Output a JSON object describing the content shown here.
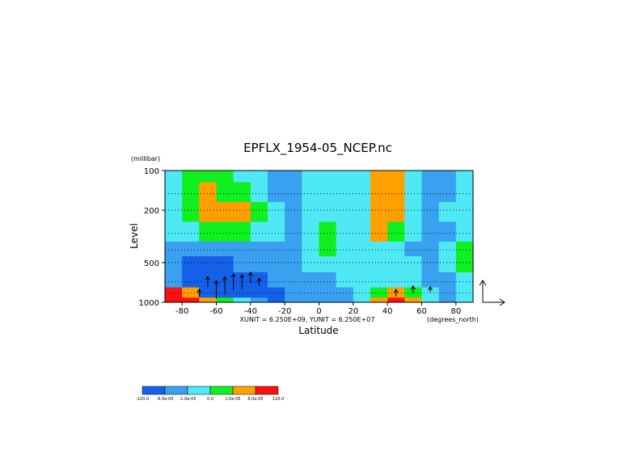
{
  "chart_data": {
    "type": "heatmap",
    "title": "EPFLX_1954-05_NCEP.nc",
    "xlabel": "Latitude",
    "x_units": "(degrees_north)",
    "ylabel": "Level",
    "y_units": "(millibar)",
    "xlim": [
      -90,
      90
    ],
    "ylim": [
      1000,
      100
    ],
    "y_scale": "log",
    "x_ticks": [
      -80,
      -60,
      -40,
      -20,
      0,
      20,
      40,
      60,
      80
    ],
    "y_ticks": [
      100,
      200,
      500,
      1000
    ],
    "unit_label": "XUNIT = 6.250E+09, YUNIT = 6.250E+07",
    "levels": {
      "colors": [
        "#1560e8",
        "#3aa0f0",
        "#4fe8f5",
        "#10f020",
        "#ffa000",
        "#ff1010"
      ],
      "labels": [
        "-120.0",
        "-6.0e-05",
        "-1.0e-05",
        "0.0",
        "1.0e-05",
        "6.0e-05",
        "120.0"
      ]
    },
    "x": [
      -85,
      -75,
      -65,
      -55,
      -45,
      -35,
      -25,
      -15,
      -5,
      5,
      15,
      25,
      35,
      45,
      55,
      65,
      75,
      85
    ],
    "y": [
      100,
      150,
      200,
      300,
      400,
      500,
      700,
      850,
      1000
    ],
    "z_class": [
      [
        2,
        3,
        3,
        3,
        2,
        2,
        1,
        1,
        2,
        2,
        2,
        2,
        4,
        4,
        2,
        1,
        1,
        2
      ],
      [
        2,
        3,
        4,
        3,
        3,
        2,
        1,
        1,
        2,
        2,
        2,
        2,
        4,
        4,
        2,
        1,
        1,
        2
      ],
      [
        2,
        3,
        4,
        4,
        4,
        3,
        2,
        1,
        2,
        2,
        2,
        2,
        4,
        4,
        2,
        1,
        2,
        2
      ],
      [
        2,
        2,
        3,
        3,
        3,
        2,
        2,
        1,
        2,
        3,
        2,
        2,
        4,
        3,
        2,
        1,
        1,
        2
      ],
      [
        1,
        1,
        1,
        1,
        1,
        1,
        1,
        1,
        2,
        3,
        2,
        2,
        2,
        2,
        1,
        1,
        2,
        3
      ],
      [
        1,
        0,
        0,
        0,
        1,
        1,
        1,
        1,
        2,
        2,
        2,
        2,
        2,
        2,
        2,
        1,
        2,
        3
      ],
      [
        1,
        0,
        0,
        0,
        0,
        0,
        1,
        1,
        1,
        1,
        2,
        2,
        2,
        2,
        2,
        1,
        1,
        2
      ],
      [
        5,
        4,
        0,
        0,
        0,
        0,
        0,
        1,
        1,
        1,
        1,
        2,
        3,
        4,
        3,
        2,
        1,
        2
      ],
      [
        5,
        5,
        4,
        3,
        2,
        1,
        0,
        1,
        1,
        1,
        1,
        2,
        4,
        5,
        4,
        2,
        1,
        2
      ]
    ],
    "quivers": [
      {
        "x": -70,
        "y": 850,
        "u": 0,
        "v": 0.4
      },
      {
        "x": -65,
        "y": 700,
        "u": 0,
        "v": 0.6
      },
      {
        "x": -60,
        "y": 800,
        "u": 0,
        "v": 1.0
      },
      {
        "x": -55,
        "y": 750,
        "u": 0,
        "v": 1.0
      },
      {
        "x": -50,
        "y": 700,
        "u": 0,
        "v": 0.9
      },
      {
        "x": -45,
        "y": 700,
        "u": 0,
        "v": 0.8
      },
      {
        "x": -40,
        "y": 650,
        "u": 0,
        "v": 0.6
      },
      {
        "x": -35,
        "y": 700,
        "u": 0,
        "v": 0.4
      },
      {
        "x": 45,
        "y": 850,
        "u": 0,
        "v": 0.4
      },
      {
        "x": 55,
        "y": 800,
        "u": 0,
        "v": 0.4
      },
      {
        "x": 65,
        "y": 800,
        "u": 0,
        "v": 0.3
      }
    ]
  }
}
